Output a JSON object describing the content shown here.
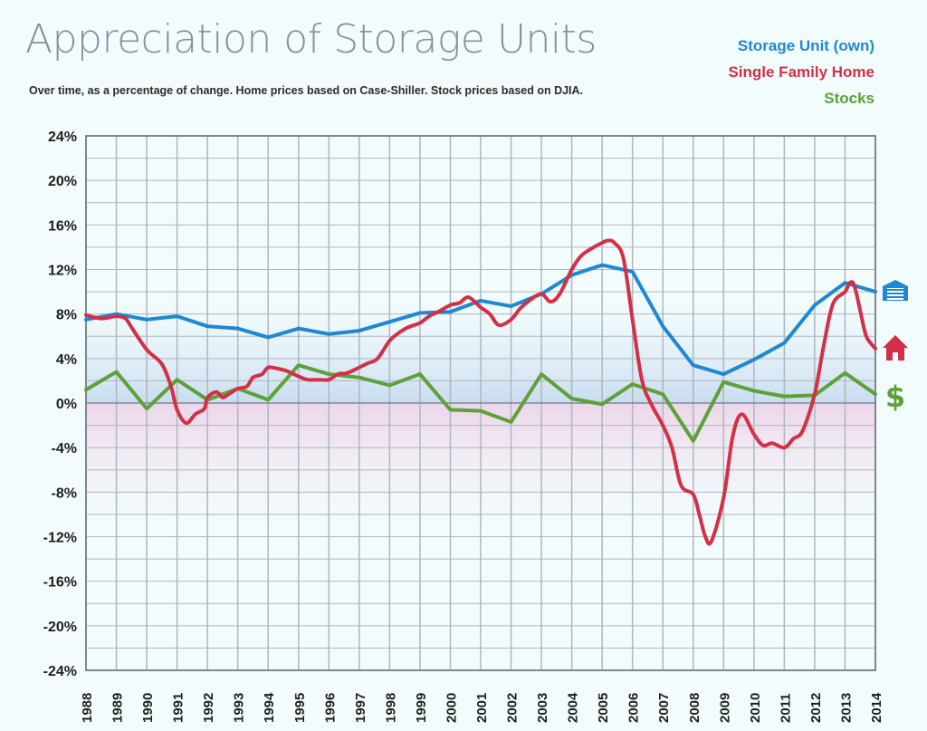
{
  "page": {
    "title": "Appreciation of Storage Units",
    "subtitle": "Over time, as a percentage of change. Home prices based on Case-Shiller. Stock prices based on DJIA."
  },
  "legend": [
    {
      "label": "Storage Unit  (own)",
      "color": "#1e88d4"
    },
    {
      "label": "Single Family Home",
      "color": "#d42f46"
    },
    {
      "label": "Stocks",
      "color": "#5ea138"
    }
  ],
  "chart_data": {
    "type": "line",
    "title": "Appreciation of Storage Units",
    "ylim": [
      -24,
      24
    ],
    "yticks": [
      "24%",
      "20%",
      "16%",
      "12%",
      "8%",
      "4%",
      "0%",
      "-4%",
      "-8%",
      "-12%",
      "-16%",
      "-20%",
      "-24%"
    ],
    "ytick_values": [
      24,
      20,
      16,
      12,
      8,
      4,
      0,
      -4,
      -8,
      -12,
      -16,
      -20,
      -24
    ],
    "xlim": [
      1988,
      2014
    ],
    "xticks": [
      "1988",
      "1989",
      "1990",
      "1991",
      "1992",
      "1993",
      "1994",
      "1995",
      "1996",
      "1997",
      "1998",
      "1999",
      "2000",
      "2001",
      "2002",
      "2003",
      "2004",
      "2005",
      "2006",
      "2007",
      "2008",
      "2009",
      "2010",
      "2011",
      "2012",
      "2013",
      "2014"
    ],
    "grid": true,
    "legend_position": "top-right",
    "series": [
      {
        "name": "Storage Unit  (own)",
        "color": "#1e88d4",
        "icon": "garage-icon",
        "x": [
          1988,
          1989,
          1990,
          1991,
          1992,
          1993,
          1994,
          1995,
          1996,
          1997,
          1998,
          1999,
          2000,
          2001,
          2002,
          2003,
          2004,
          2005,
          2006,
          2007,
          2008,
          2009,
          2010,
          2011,
          2012,
          2013,
          2014
        ],
        "values": [
          7.5,
          8.0,
          7.5,
          7.8,
          6.9,
          6.7,
          5.9,
          6.7,
          6.2,
          6.5,
          7.3,
          8.1,
          8.2,
          9.2,
          8.7,
          9.8,
          11.5,
          12.4,
          11.8,
          6.9,
          3.4,
          2.6,
          3.9,
          5.4,
          8.8,
          10.8,
          10.0
        ]
      },
      {
        "name": "Single Family Home",
        "color": "#d42f46",
        "icon": "house-icon",
        "x": [
          1988,
          1988.5,
          1989,
          1989.3,
          1989.5,
          1990,
          1990.5,
          1990.8,
          1991,
          1991.3,
          1991.6,
          1991.9,
          1992,
          1992.3,
          1992.5,
          1992.7,
          1993,
          1993.3,
          1993.5,
          1993.8,
          1994,
          1994.3,
          1994.6,
          1995,
          1995.3,
          1995.7,
          1996,
          1996.3,
          1996.6,
          1997,
          1997.3,
          1997.6,
          1998,
          1998.3,
          1998.6,
          1999,
          1999.3,
          1999.6,
          2000,
          2000.3,
          2000.6,
          2001,
          2001.3,
          2001.6,
          2002,
          2002.3,
          2002.6,
          2003,
          2003.3,
          2003.6,
          2004,
          2004.3,
          2004.6,
          2005,
          2005.2,
          2005.4,
          2005.7,
          2006,
          2006.3,
          2006.6,
          2007,
          2007.3,
          2007.6,
          2008,
          2008.2,
          2008.4,
          2008.6,
          2009,
          2009.3,
          2009.6,
          2010,
          2010.3,
          2010.6,
          2011,
          2011.3,
          2011.6,
          2012,
          2012.3,
          2012.6,
          2013,
          2013.15,
          2013.3,
          2013.5,
          2013.7,
          2014
        ],
        "values": [
          7.9,
          7.6,
          7.8,
          7.6,
          6.8,
          4.8,
          3.5,
          1.5,
          -0.6,
          -1.8,
          -1.0,
          -0.5,
          0.5,
          1.0,
          0.5,
          0.8,
          1.3,
          1.5,
          2.3,
          2.6,
          3.2,
          3.1,
          2.9,
          2.4,
          2.1,
          2.1,
          2.1,
          2.6,
          2.7,
          3.2,
          3.6,
          4.0,
          5.6,
          6.3,
          6.8,
          7.2,
          7.8,
          8.2,
          8.8,
          9.0,
          9.5,
          8.6,
          8.0,
          7.0,
          7.5,
          8.5,
          9.2,
          9.8,
          9.1,
          9.8,
          12.0,
          13.2,
          13.8,
          14.4,
          14.6,
          14.4,
          13.0,
          7.5,
          2.2,
          0.0,
          -2.0,
          -4.0,
          -7.4,
          -8.2,
          -10.0,
          -12.0,
          -12.4,
          -8.5,
          -3.0,
          -1.0,
          -2.8,
          -3.8,
          -3.6,
          -4.0,
          -3.2,
          -2.5,
          0.8,
          5.2,
          8.9,
          10.0,
          10.8,
          10.6,
          8.3,
          6.0,
          4.9
        ]
      },
      {
        "name": "Stocks",
        "color": "#5ea138",
        "icon": "dollar-icon",
        "x": [
          1988,
          1989,
          1990,
          1991,
          1992,
          1993,
          1994,
          1995,
          1996,
          1997,
          1998,
          1999,
          2000,
          2001,
          2002,
          2003,
          2004,
          2005,
          2006,
          2007,
          2008,
          2009,
          2010,
          2011,
          2012,
          2013,
          2014
        ],
        "values": [
          1.2,
          2.8,
          -0.5,
          2.1,
          0.3,
          1.3,
          0.3,
          3.4,
          2.6,
          2.3,
          1.6,
          2.6,
          -0.6,
          -0.7,
          -1.7,
          2.6,
          0.4,
          -0.1,
          1.7,
          0.8,
          -3.4,
          1.9,
          1.1,
          0.6,
          0.7,
          2.7,
          0.8
        ]
      }
    ]
  }
}
